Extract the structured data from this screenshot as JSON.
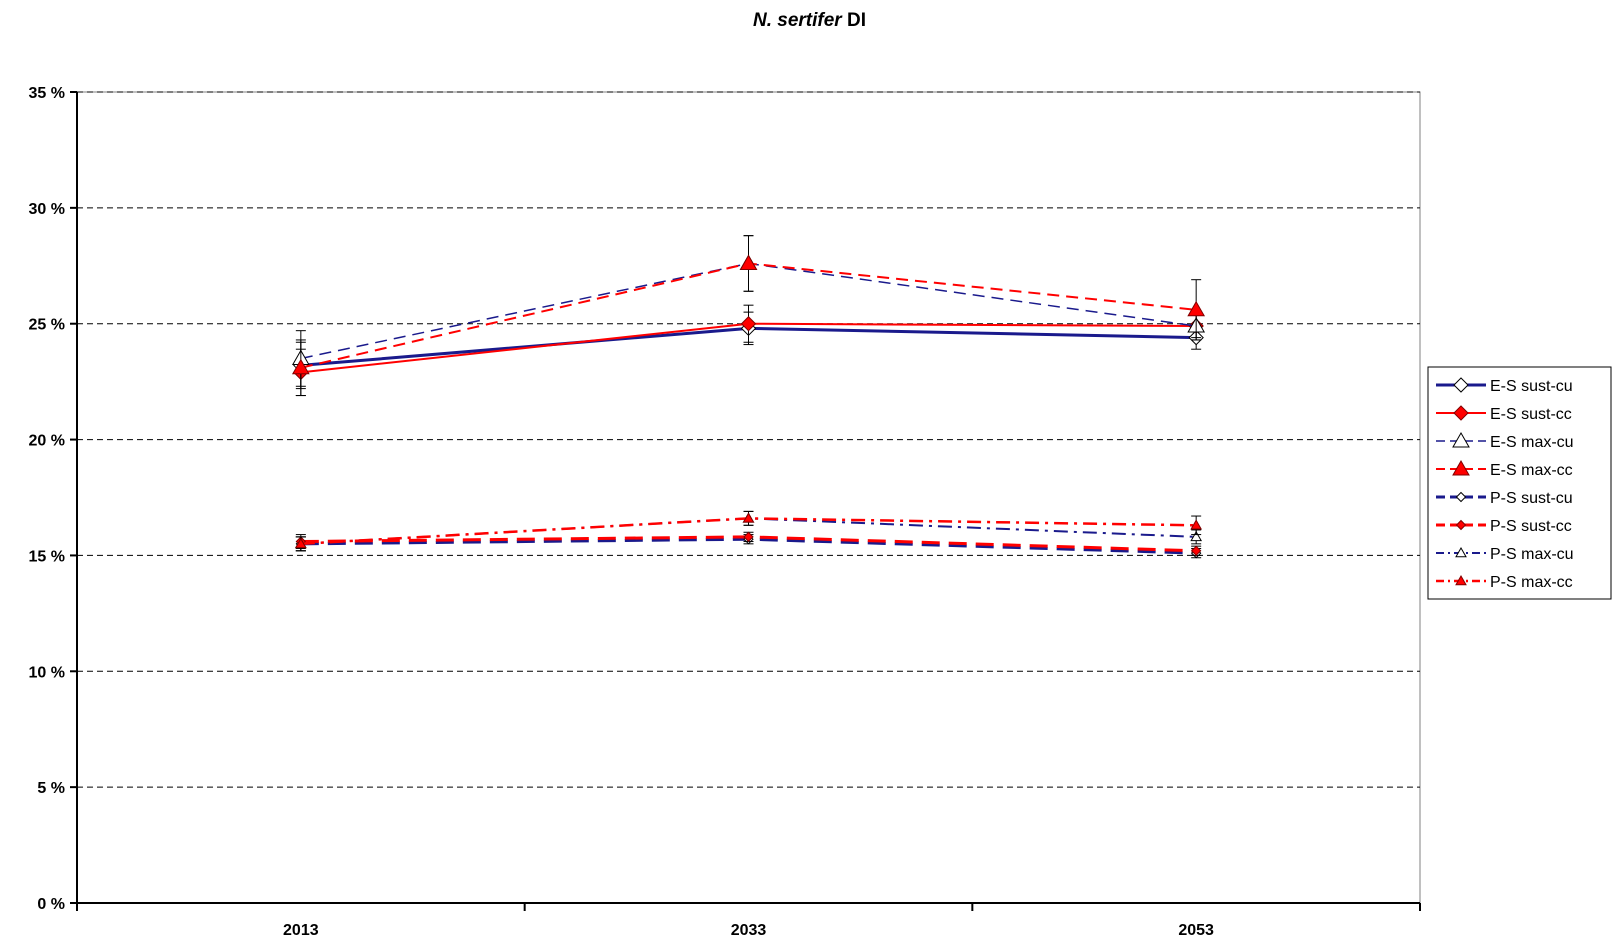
{
  "chart_data": {
    "type": "line",
    "title": {
      "species": "N. sertifer",
      "suffix": "DI"
    },
    "xlabel": "",
    "ylabel": "",
    "categories": [
      "2013",
      "2033",
      "2053"
    ],
    "ylim": [
      0,
      35
    ],
    "y_ticks": [
      0,
      5,
      10,
      15,
      20,
      25,
      30,
      35
    ],
    "y_tick_labels": [
      "0 %",
      "5 %",
      "10 %",
      "15 %",
      "20 %",
      "25 %",
      "30 %",
      "35 %"
    ],
    "grid": "horizontal-dashed",
    "legend_position": "right",
    "series": [
      {
        "name": "E-S sust-cu",
        "values": [
          23.2,
          24.8,
          24.4
        ],
        "err": [
          1.0,
          0.7,
          0.5
        ],
        "color": "#1a1a8c",
        "dash": "solid",
        "width": 3,
        "marker": "diamond",
        "marker_fill": "#ffffff",
        "marker_size": "large"
      },
      {
        "name": "E-S sust-cc",
        "values": [
          22.9,
          25.0,
          24.9
        ],
        "err": [
          1.0,
          0.8,
          0.5
        ],
        "color": "#ff0000",
        "dash": "solid",
        "width": 2,
        "marker": "diamond",
        "marker_fill": "#ff0000",
        "marker_size": "large"
      },
      {
        "name": "E-S max-cu",
        "values": [
          23.5,
          27.6,
          24.9
        ],
        "err": [
          1.2,
          1.2,
          0.6
        ],
        "color": "#1a1a8c",
        "dash": "dash",
        "width": 1.5,
        "marker": "triangle",
        "marker_fill": "#ffffff",
        "marker_size": "large"
      },
      {
        "name": "E-S max-cc",
        "values": [
          23.1,
          27.6,
          25.6
        ],
        "err": [
          1.2,
          1.2,
          1.3
        ],
        "color": "#ff0000",
        "dash": "dash",
        "width": 2,
        "marker": "triangle",
        "marker_fill": "#ff0000",
        "marker_size": "large"
      },
      {
        "name": "P-S sust-cu",
        "values": [
          15.5,
          15.7,
          15.1
        ],
        "err": [
          0.3,
          0.2,
          0.2
        ],
        "color": "#1a1a8c",
        "dash": "longdash",
        "width": 3,
        "marker": "diamond",
        "marker_fill": "#ffffff",
        "marker_size": "small"
      },
      {
        "name": "P-S sust-cc",
        "values": [
          15.6,
          15.8,
          15.2
        ],
        "err": [
          0.3,
          0.2,
          0.2
        ],
        "color": "#ff0000",
        "dash": "longdash",
        "width": 3,
        "marker": "diamond",
        "marker_fill": "#ff0000",
        "marker_size": "small"
      },
      {
        "name": "P-S max-cu",
        "values": [
          15.5,
          16.6,
          15.8
        ],
        "err": [
          0.3,
          0.3,
          0.3
        ],
        "color": "#1a1a8c",
        "dash": "dashdot",
        "width": 2,
        "marker": "triangle",
        "marker_fill": "#ffffff",
        "marker_size": "small"
      },
      {
        "name": "P-S max-cc",
        "values": [
          15.5,
          16.6,
          16.3
        ],
        "err": [
          0.3,
          0.3,
          0.4
        ],
        "color": "#ff0000",
        "dash": "dashdot",
        "width": 2.5,
        "marker": "triangle",
        "marker_fill": "#ff0000",
        "marker_size": "small"
      }
    ]
  }
}
